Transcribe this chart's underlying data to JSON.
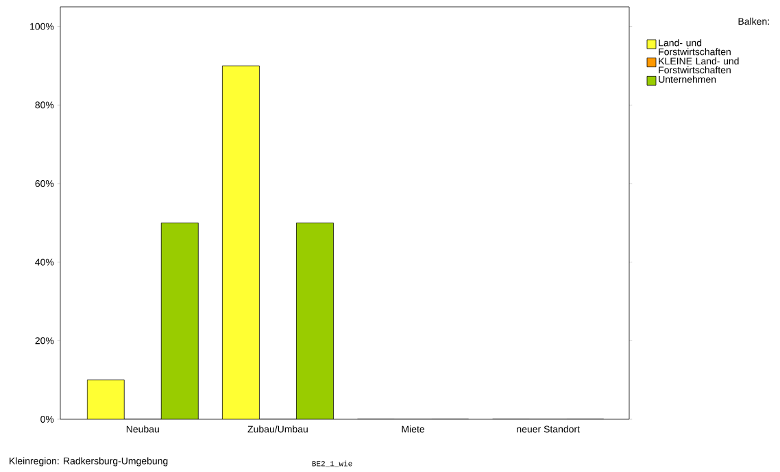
{
  "chart_data": {
    "type": "bar",
    "categories": [
      "Neubau",
      "Zubau/Umbau",
      "Miete",
      "neuer Standort"
    ],
    "series": [
      {
        "name": "Land- und Forstwirtschaften",
        "color": "#ffff33",
        "values": [
          10,
          90,
          0,
          0
        ]
      },
      {
        "name": "KLEINE Land- und Forstwirtschaften",
        "color": "#ff9900",
        "values": [
          0,
          0,
          0,
          0
        ]
      },
      {
        "name": "Unternehmen",
        "color": "#99cc00",
        "values": [
          50,
          50,
          0,
          0
        ]
      }
    ],
    "ylim": [
      0,
      105
    ],
    "yticks": [
      {
        "value": 0,
        "label": "0%"
      },
      {
        "value": 20,
        "label": "20%"
      },
      {
        "value": 40,
        "label": "40%"
      },
      {
        "value": 60,
        "label": "60%"
      },
      {
        "value": 80,
        "label": "80%"
      },
      {
        "value": 100,
        "label": "100%"
      }
    ],
    "legend": "right",
    "legend_title": "Balken:",
    "grid": false,
    "annotations": [
      "Kleinregion: Radkersburg-Umgebung",
      "BE2_1_wie"
    ]
  }
}
